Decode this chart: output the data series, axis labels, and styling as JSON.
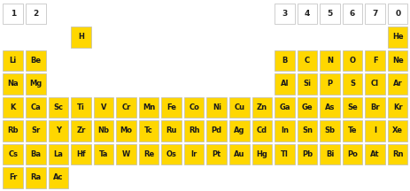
{
  "background_color": "#ffffff",
  "cell_color": "#FFD700",
  "text_color": "#1a1a1a",
  "grid_line_color": "#bbbbbb",
  "elements": [
    {
      "symbol": "H",
      "row": 1,
      "col": 4
    },
    {
      "symbol": "He",
      "row": 1,
      "col": 18
    },
    {
      "symbol": "Li",
      "row": 2,
      "col": 1
    },
    {
      "symbol": "Be",
      "row": 2,
      "col": 2
    },
    {
      "symbol": "B",
      "row": 2,
      "col": 13
    },
    {
      "symbol": "C",
      "row": 2,
      "col": 14
    },
    {
      "symbol": "N",
      "row": 2,
      "col": 15
    },
    {
      "symbol": "O",
      "row": 2,
      "col": 16
    },
    {
      "symbol": "F",
      "row": 2,
      "col": 17
    },
    {
      "symbol": "Ne",
      "row": 2,
      "col": 18
    },
    {
      "symbol": "Na",
      "row": 3,
      "col": 1
    },
    {
      "symbol": "Mg",
      "row": 3,
      "col": 2
    },
    {
      "symbol": "Al",
      "row": 3,
      "col": 13
    },
    {
      "symbol": "Si",
      "row": 3,
      "col": 14
    },
    {
      "symbol": "P",
      "row": 3,
      "col": 15
    },
    {
      "symbol": "S",
      "row": 3,
      "col": 16
    },
    {
      "symbol": "Cl",
      "row": 3,
      "col": 17
    },
    {
      "symbol": "Ar",
      "row": 3,
      "col": 18
    },
    {
      "symbol": "K",
      "row": 4,
      "col": 1
    },
    {
      "symbol": "Ca",
      "row": 4,
      "col": 2
    },
    {
      "symbol": "Sc",
      "row": 4,
      "col": 3
    },
    {
      "symbol": "Ti",
      "row": 4,
      "col": 4
    },
    {
      "symbol": "V",
      "row": 4,
      "col": 5
    },
    {
      "symbol": "Cr",
      "row": 4,
      "col": 6
    },
    {
      "symbol": "Mn",
      "row": 4,
      "col": 7
    },
    {
      "symbol": "Fe",
      "row": 4,
      "col": 8
    },
    {
      "symbol": "Co",
      "row": 4,
      "col": 9
    },
    {
      "symbol": "Ni",
      "row": 4,
      "col": 10
    },
    {
      "symbol": "Cu",
      "row": 4,
      "col": 11
    },
    {
      "symbol": "Zn",
      "row": 4,
      "col": 12
    },
    {
      "symbol": "Ga",
      "row": 4,
      "col": 13
    },
    {
      "symbol": "Ge",
      "row": 4,
      "col": 14
    },
    {
      "symbol": "As",
      "row": 4,
      "col": 15
    },
    {
      "symbol": "Se",
      "row": 4,
      "col": 16
    },
    {
      "symbol": "Br",
      "row": 4,
      "col": 17
    },
    {
      "symbol": "Kr",
      "row": 4,
      "col": 18
    },
    {
      "symbol": "Rb",
      "row": 5,
      "col": 1
    },
    {
      "symbol": "Sr",
      "row": 5,
      "col": 2
    },
    {
      "symbol": "Y",
      "row": 5,
      "col": 3
    },
    {
      "symbol": "Zr",
      "row": 5,
      "col": 4
    },
    {
      "symbol": "Nb",
      "row": 5,
      "col": 5
    },
    {
      "symbol": "Mo",
      "row": 5,
      "col": 6
    },
    {
      "symbol": "Tc",
      "row": 5,
      "col": 7
    },
    {
      "symbol": "Ru",
      "row": 5,
      "col": 8
    },
    {
      "symbol": "Rh",
      "row": 5,
      "col": 9
    },
    {
      "symbol": "Pd",
      "row": 5,
      "col": 10
    },
    {
      "symbol": "Ag",
      "row": 5,
      "col": 11
    },
    {
      "symbol": "Cd",
      "row": 5,
      "col": 12
    },
    {
      "symbol": "In",
      "row": 5,
      "col": 13
    },
    {
      "symbol": "Sn",
      "row": 5,
      "col": 14
    },
    {
      "symbol": "Sb",
      "row": 5,
      "col": 15
    },
    {
      "symbol": "Te",
      "row": 5,
      "col": 16
    },
    {
      "symbol": "I",
      "row": 5,
      "col": 17
    },
    {
      "symbol": "Xe",
      "row": 5,
      "col": 18
    },
    {
      "symbol": "Cs",
      "row": 6,
      "col": 1
    },
    {
      "symbol": "Ba",
      "row": 6,
      "col": 2
    },
    {
      "symbol": "La",
      "row": 6,
      "col": 3
    },
    {
      "symbol": "Hf",
      "row": 6,
      "col": 4
    },
    {
      "symbol": "Ta",
      "row": 6,
      "col": 5
    },
    {
      "symbol": "W",
      "row": 6,
      "col": 6
    },
    {
      "symbol": "Re",
      "row": 6,
      "col": 7
    },
    {
      "symbol": "Os",
      "row": 6,
      "col": 8
    },
    {
      "symbol": "Ir",
      "row": 6,
      "col": 9
    },
    {
      "symbol": "Pt",
      "row": 6,
      "col": 10
    },
    {
      "symbol": "Au",
      "row": 6,
      "col": 11
    },
    {
      "symbol": "Hg",
      "row": 6,
      "col": 12
    },
    {
      "symbol": "Tl",
      "row": 6,
      "col": 13
    },
    {
      "symbol": "Pb",
      "row": 6,
      "col": 14
    },
    {
      "symbol": "Bi",
      "row": 6,
      "col": 15
    },
    {
      "symbol": "Po",
      "row": 6,
      "col": 16
    },
    {
      "symbol": "At",
      "row": 6,
      "col": 17
    },
    {
      "symbol": "Rn",
      "row": 6,
      "col": 18
    },
    {
      "symbol": "Fr",
      "row": 7,
      "col": 1
    },
    {
      "symbol": "Ra",
      "row": 7,
      "col": 2
    },
    {
      "symbol": "Ac",
      "row": 7,
      "col": 3
    }
  ],
  "header_cols": [
    [
      1,
      "1"
    ],
    [
      2,
      "2"
    ],
    [
      13,
      "3"
    ],
    [
      14,
      "4"
    ],
    [
      15,
      "5"
    ],
    [
      16,
      "6"
    ],
    [
      17,
      "7"
    ],
    [
      18,
      "0"
    ]
  ]
}
